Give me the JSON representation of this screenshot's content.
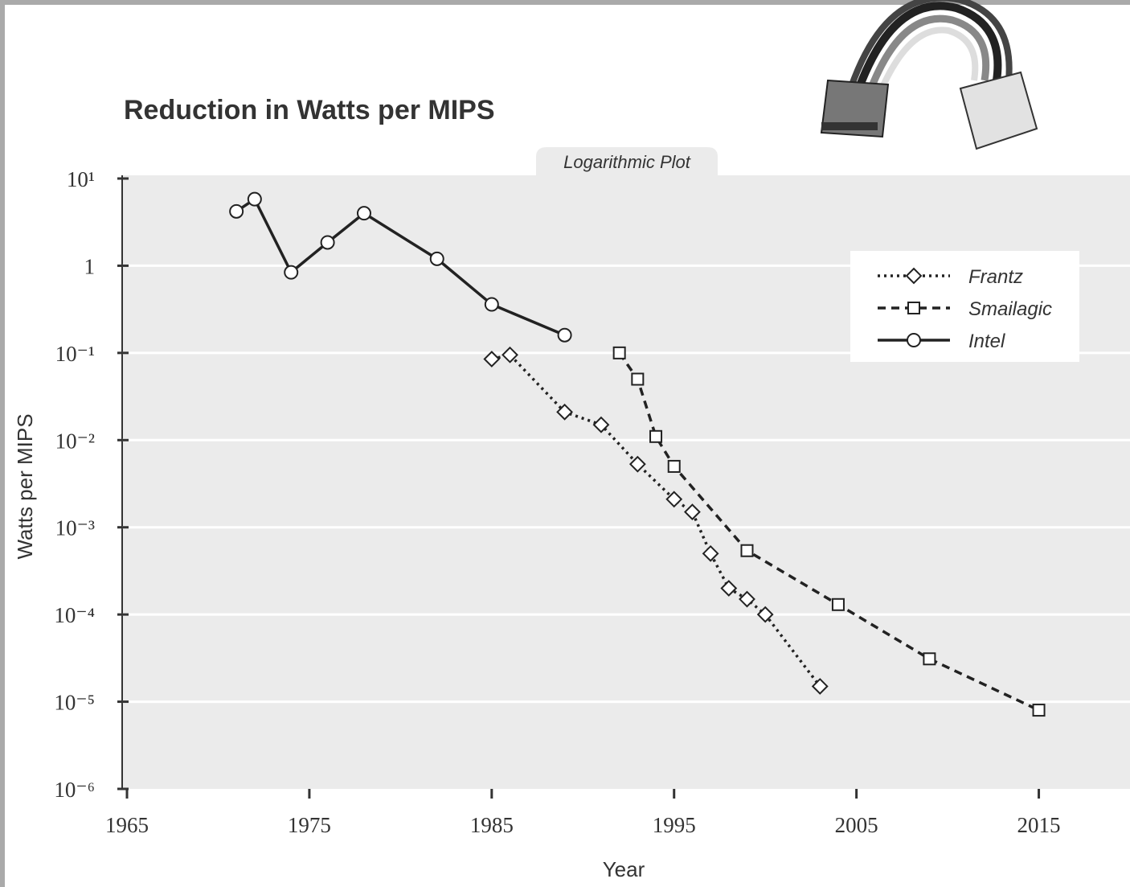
{
  "chart_data": {
    "type": "line",
    "title": "Reduction in Watts per MIPS",
    "annotation": "Logarithmic Plot",
    "x_label": "Year",
    "y_label": "Watts per MIPS",
    "xlim": [
      1965,
      2020
    ],
    "xticks": [
      1965,
      1975,
      1985,
      1995,
      2005,
      2015
    ],
    "ylim": [
      1e-06,
      10
    ],
    "yscale": "log",
    "yticks": [
      {
        "value": 10,
        "label": "10¹"
      },
      1,
      {
        "value": 0.1,
        "label": "10⁻¹"
      },
      {
        "value": 0.01,
        "label": "10⁻²"
      },
      {
        "value": 0.001,
        "label": "10⁻³"
      },
      {
        "value": 0.0001,
        "label": "10⁻⁴"
      },
      {
        "value": 1e-05,
        "label": "10⁻⁵"
      },
      {
        "value": 1e-06,
        "label": "10⁻⁶"
      }
    ],
    "grid": true,
    "legend": "upper right",
    "series": [
      {
        "name": "Frantz",
        "color": "#222222",
        "dash": "dotted",
        "marker": "diamond",
        "x": [
          1985,
          1986,
          1989,
          1991,
          1993,
          1995,
          1996,
          1997,
          1998,
          1999,
          2000,
          2003
        ],
        "values": [
          0.085,
          0.095,
          0.021,
          0.015,
          0.0053,
          0.0021,
          0.0015,
          0.0005,
          0.0002,
          0.00015,
          0.0001,
          1.5e-05
        ]
      },
      {
        "name": "Smailagic",
        "color": "#222222",
        "dash": "dashed",
        "marker": "square",
        "x": [
          1992,
          1993,
          1994,
          1995,
          1999,
          2004,
          2009,
          2015
        ],
        "values": [
          0.1,
          0.05,
          0.011,
          0.005,
          0.00054,
          0.00013,
          3.1e-05,
          8e-06
        ]
      },
      {
        "name": "Intel",
        "color": "#222222",
        "dash": "solid",
        "marker": "circle",
        "x": [
          1971,
          1972,
          1974,
          1976,
          1978,
          1982,
          1985,
          1989
        ],
        "values": [
          4.2,
          5.8,
          0.84,
          1.85,
          4.0,
          1.2,
          0.36,
          0.16
        ]
      }
    ]
  }
}
